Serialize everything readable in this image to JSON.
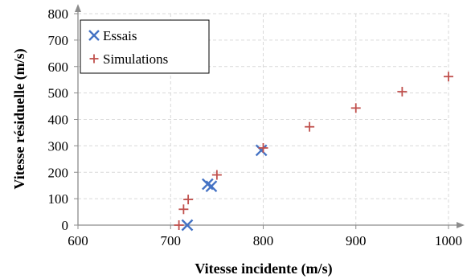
{
  "chart_data": {
    "type": "scatter",
    "xlabel": "Vitesse incidente  (m/s)",
    "ylabel": "Vitesse résiduelle  (m/s)",
    "xlim": [
      600,
      1000
    ],
    "ylim": [
      0,
      800
    ],
    "xticks": [
      600,
      700,
      800,
      900,
      1000
    ],
    "yticks": [
      0,
      100,
      200,
      300,
      400,
      500,
      600,
      700,
      800
    ],
    "grid": true,
    "legend_position": "top-left",
    "series": [
      {
        "name": "Essais",
        "marker": "x",
        "color": "#4472c4",
        "points": [
          {
            "x": 718,
            "y": 0
          },
          {
            "x": 740,
            "y": 155
          },
          {
            "x": 744,
            "y": 147
          },
          {
            "x": 798,
            "y": 283
          }
        ]
      },
      {
        "name": "Simulations",
        "marker": "+",
        "color": "#c0504d",
        "points": [
          {
            "x": 709,
            "y": 0
          },
          {
            "x": 714,
            "y": 60
          },
          {
            "x": 719,
            "y": 97
          },
          {
            "x": 750,
            "y": 190
          },
          {
            "x": 800,
            "y": 292
          },
          {
            "x": 850,
            "y": 372
          },
          {
            "x": 900,
            "y": 443
          },
          {
            "x": 950,
            "y": 505
          },
          {
            "x": 1000,
            "y": 562
          }
        ]
      }
    ]
  }
}
